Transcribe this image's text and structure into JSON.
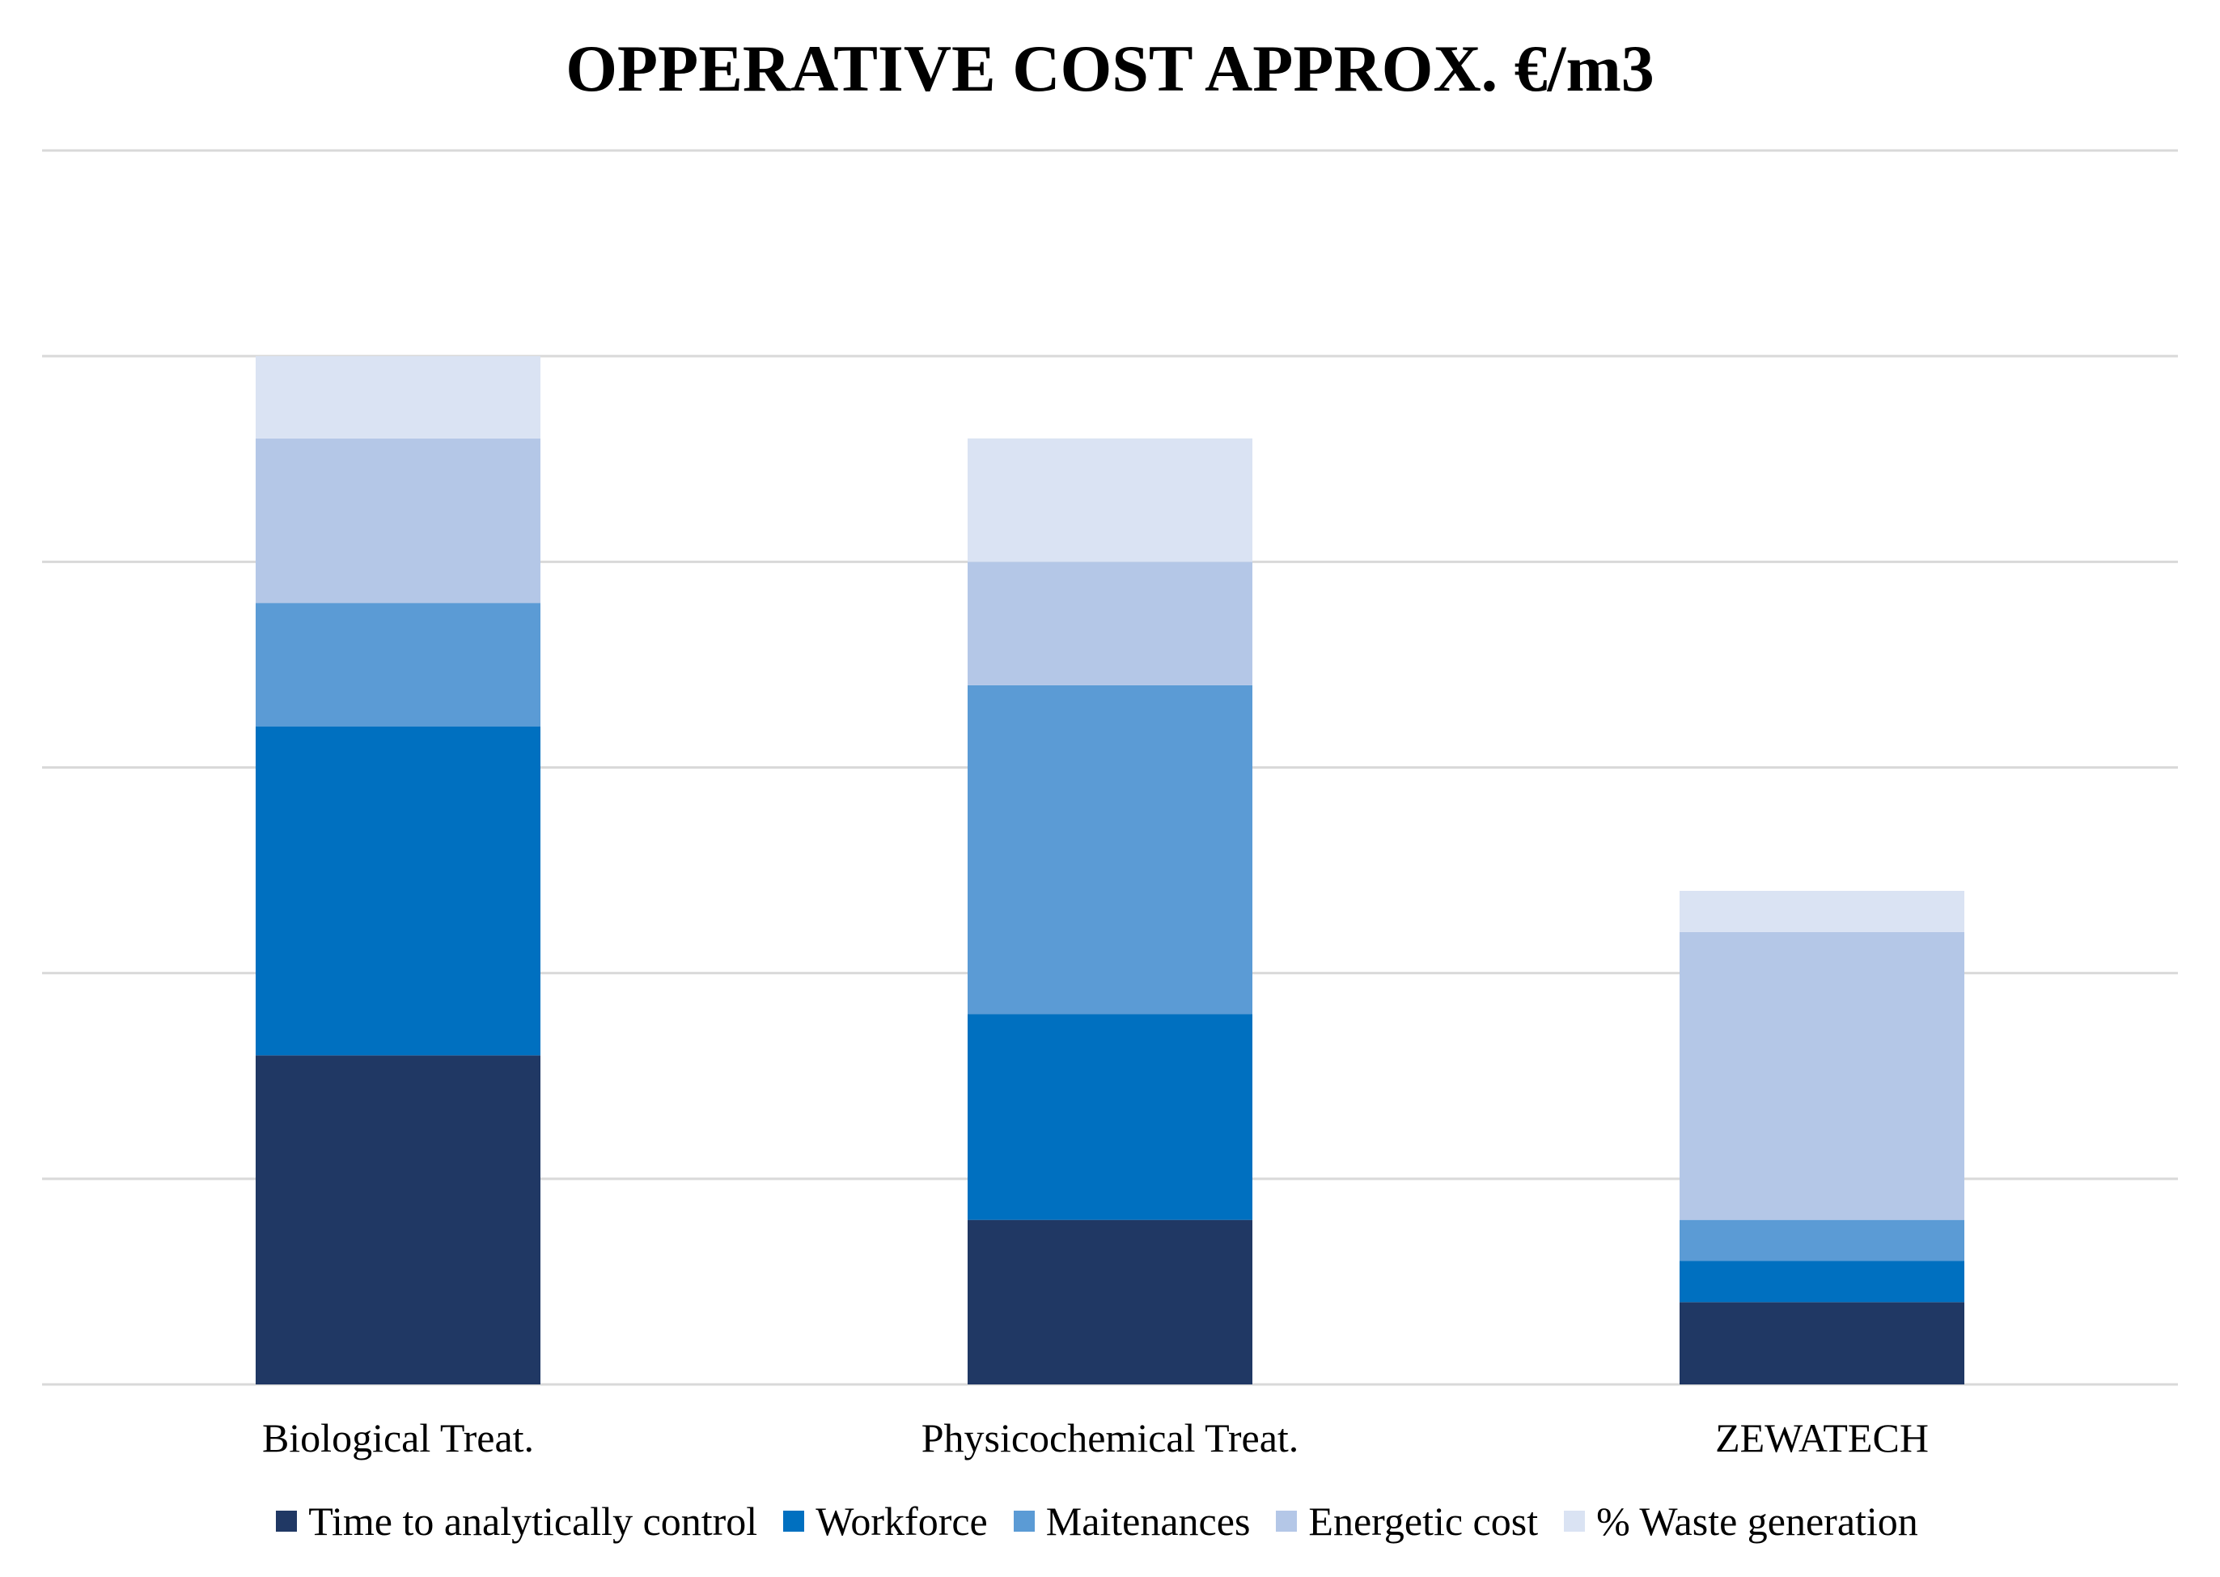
{
  "chart_data": {
    "type": "bar",
    "stacked": true,
    "title": "OPPERATIVE COST APPROX. €/m3",
    "xlabel": "",
    "ylabel": "",
    "ylim": [
      0,
      6
    ],
    "grid": true,
    "legend_position": "bottom",
    "categories": [
      "Biological Treat.",
      "Physicochemical Treat.",
      "ZEWATECH"
    ],
    "series": [
      {
        "name": "Time to analytically control",
        "color": "#203864",
        "values": [
          1.6,
          0.8,
          0.4
        ]
      },
      {
        "name": "Workforce",
        "color": "#0070C0",
        "values": [
          1.6,
          1.0,
          0.2
        ]
      },
      {
        "name": "Maitenances",
        "color": "#5B9BD5",
        "values": [
          0.6,
          1.6,
          0.2
        ]
      },
      {
        "name": "Energetic cost",
        "color": "#B4C7E7",
        "values": [
          0.8,
          0.6,
          1.4
        ]
      },
      {
        "name": "% Waste generation",
        "color": "#DAE3F3",
        "values": [
          0.4,
          0.6,
          0.2
        ]
      }
    ]
  }
}
